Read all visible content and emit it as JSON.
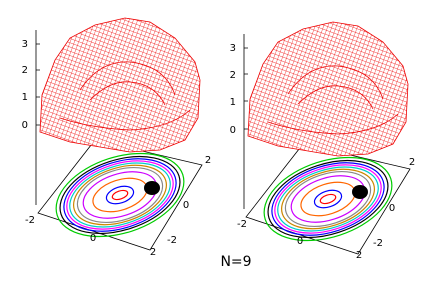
{
  "panels": [
    {
      "z_ticks": [
        "3",
        "2",
        "1",
        "0"
      ],
      "x_ticks": [
        "-2",
        "0",
        "2"
      ],
      "y_ticks": [
        "-2",
        "0",
        "2"
      ]
    },
    {
      "z_ticks": [
        "3",
        "2",
        "1",
        "0"
      ],
      "x_ticks": [
        "-2",
        "0",
        "2"
      ],
      "y_ticks": [
        "-2",
        "0",
        "2"
      ]
    }
  ],
  "caption": "N=9"
}
